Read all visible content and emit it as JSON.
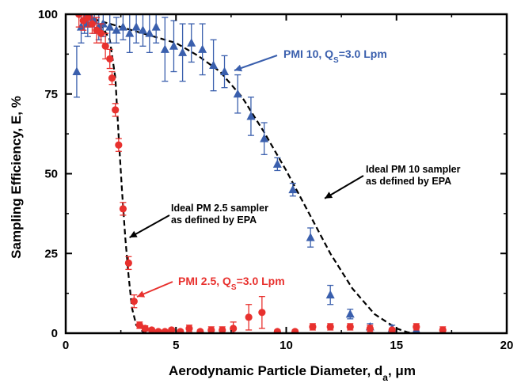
{
  "chart_data": {
    "type": "scatter",
    "xlabel": {
      "main": "Aerodynamic Particle Diameter, d",
      "sub": "a",
      "tail": ", μm"
    },
    "ylabel": "Sampling Efficiency, E, %",
    "xlim": [
      0,
      20
    ],
    "ylim": [
      0,
      100
    ],
    "x_ticks": [
      "0",
      "5",
      "10",
      "15",
      "20"
    ],
    "y_ticks": [
      "0",
      "25",
      "50",
      "75",
      "100"
    ],
    "grid": false,
    "series": [
      {
        "name": "PMI 10, Q_S=3.0 Lpm",
        "label": {
          "pre": "PMI 10, Q",
          "sub": "S",
          "post": "=3.0 Lpm"
        },
        "color": "#3a5fad",
        "marker": "triangle",
        "points": [
          {
            "x": 0.5,
            "y": 82,
            "err": 8
          },
          {
            "x": 0.7,
            "y": 96,
            "err": 5
          },
          {
            "x": 0.85,
            "y": 98,
            "err": 4
          },
          {
            "x": 1.0,
            "y": 97,
            "err": 4
          },
          {
            "x": 1.15,
            "y": 99,
            "err": 3
          },
          {
            "x": 1.3,
            "y": 98,
            "err": 4
          },
          {
            "x": 1.5,
            "y": 96,
            "err": 4
          },
          {
            "x": 1.7,
            "y": 97,
            "err": 4
          },
          {
            "x": 2.0,
            "y": 96,
            "err": 5
          },
          {
            "x": 2.3,
            "y": 95,
            "err": 4
          },
          {
            "x": 2.6,
            "y": 96,
            "err": 4
          },
          {
            "x": 2.9,
            "y": 94,
            "err": 6
          },
          {
            "x": 3.2,
            "y": 96,
            "err": 5
          },
          {
            "x": 3.5,
            "y": 95,
            "err": 5
          },
          {
            "x": 3.8,
            "y": 94,
            "err": 6
          },
          {
            "x": 4.1,
            "y": 96,
            "err": 5
          },
          {
            "x": 4.5,
            "y": 89,
            "err": 10
          },
          {
            "x": 4.9,
            "y": 90,
            "err": 8
          },
          {
            "x": 5.3,
            "y": 88,
            "err": 9
          },
          {
            "x": 5.7,
            "y": 91,
            "err": 6
          },
          {
            "x": 6.2,
            "y": 89,
            "err": 8
          },
          {
            "x": 6.7,
            "y": 84,
            "err": 8
          },
          {
            "x": 7.2,
            "y": 82,
            "err": 5
          },
          {
            "x": 7.8,
            "y": 75,
            "err": 6
          },
          {
            "x": 8.4,
            "y": 68,
            "err": 6
          },
          {
            "x": 9.0,
            "y": 61,
            "err": 5
          },
          {
            "x": 9.6,
            "y": 53,
            "err": 2
          },
          {
            "x": 10.3,
            "y": 45,
            "err": 2
          },
          {
            "x": 11.1,
            "y": 30,
            "err": 3
          },
          {
            "x": 12.0,
            "y": 12,
            "err": 3
          },
          {
            "x": 12.9,
            "y": 6,
            "err": 1.5
          },
          {
            "x": 13.8,
            "y": 2,
            "err": 1
          },
          {
            "x": 14.8,
            "y": 1.5,
            "err": 1
          },
          {
            "x": 15.9,
            "y": 1,
            "err": 0.5
          },
          {
            "x": 17.1,
            "y": 0.5,
            "err": 0.5
          }
        ]
      },
      {
        "name": "PMI 2.5, Q_S=3.0 Lpm",
        "label": {
          "pre": "PMI 2.5, Q",
          "sub": "S",
          "post": "=3.0 Lpm"
        },
        "color": "#e8312e",
        "marker": "circle",
        "points": [
          {
            "x": 0.6,
            "y": 100,
            "err": 4
          },
          {
            "x": 0.8,
            "y": 98,
            "err": 3
          },
          {
            "x": 1.0,
            "y": 99,
            "err": 3
          },
          {
            "x": 1.2,
            "y": 97,
            "err": 3
          },
          {
            "x": 1.4,
            "y": 95,
            "err": 4
          },
          {
            "x": 1.6,
            "y": 94,
            "err": 3
          },
          {
            "x": 1.8,
            "y": 90,
            "err": 4
          },
          {
            "x": 2.0,
            "y": 86,
            "err": 3
          },
          {
            "x": 2.1,
            "y": 80,
            "err": 2
          },
          {
            "x": 2.25,
            "y": 70,
            "err": 2
          },
          {
            "x": 2.4,
            "y": 59,
            "err": 2
          },
          {
            "x": 2.6,
            "y": 39,
            "err": 2
          },
          {
            "x": 2.85,
            "y": 22,
            "err": 2
          },
          {
            "x": 3.1,
            "y": 10,
            "err": 2
          },
          {
            "x": 3.35,
            "y": 2.5,
            "err": 1
          },
          {
            "x": 3.6,
            "y": 1.5,
            "err": 0.8
          },
          {
            "x": 3.9,
            "y": 1,
            "err": 0.5
          },
          {
            "x": 4.2,
            "y": 0.5,
            "err": 0.5
          },
          {
            "x": 4.5,
            "y": 0.5,
            "err": 0.5
          },
          {
            "x": 4.8,
            "y": 1,
            "err": 0.5
          },
          {
            "x": 5.2,
            "y": 0.5,
            "err": 0.5
          },
          {
            "x": 5.6,
            "y": 1.5,
            "err": 1
          },
          {
            "x": 6.1,
            "y": 0.5,
            "err": 0.5
          },
          {
            "x": 6.6,
            "y": 1,
            "err": 1
          },
          {
            "x": 7.1,
            "y": 1,
            "err": 1
          },
          {
            "x": 7.6,
            "y": 1.5,
            "err": 2
          },
          {
            "x": 8.3,
            "y": 5,
            "err": 4
          },
          {
            "x": 8.9,
            "y": 6.5,
            "err": 5
          },
          {
            "x": 9.6,
            "y": 0.5,
            "err": 0.5
          },
          {
            "x": 10.4,
            "y": 0.5,
            "err": 0.5
          },
          {
            "x": 11.2,
            "y": 2,
            "err": 1
          },
          {
            "x": 12.0,
            "y": 2,
            "err": 1
          },
          {
            "x": 12.9,
            "y": 2,
            "err": 1
          },
          {
            "x": 13.8,
            "y": 1.5,
            "err": 1
          },
          {
            "x": 14.8,
            "y": 1,
            "err": 0.5
          },
          {
            "x": 15.9,
            "y": 2,
            "err": 1
          },
          {
            "x": 17.1,
            "y": 1,
            "err": 1
          }
        ]
      }
    ],
    "curves": [
      {
        "name": "ideal-pm10",
        "style": "dashed",
        "points": [
          [
            0.5,
            100
          ],
          [
            1,
            99
          ],
          [
            2,
            97
          ],
          [
            3,
            95
          ],
          [
            4,
            93
          ],
          [
            5,
            91
          ],
          [
            6,
            87
          ],
          [
            7,
            82
          ],
          [
            8,
            74
          ],
          [
            9,
            63
          ],
          [
            10,
            51
          ],
          [
            11,
            38
          ],
          [
            12,
            25
          ],
          [
            13,
            14
          ],
          [
            14,
            6
          ],
          [
            15,
            1.5
          ],
          [
            15.5,
            0.3
          ],
          [
            16,
            0
          ]
        ]
      },
      {
        "name": "ideal-pm25",
        "style": "dashed",
        "points": [
          [
            0.5,
            100
          ],
          [
            1,
            99.5
          ],
          [
            1.5,
            98
          ],
          [
            2,
            92
          ],
          [
            2.25,
            80
          ],
          [
            2.4,
            62
          ],
          [
            2.55,
            45
          ],
          [
            2.7,
            30
          ],
          [
            2.85,
            18
          ],
          [
            3.0,
            8
          ],
          [
            3.2,
            2.5
          ],
          [
            3.5,
            0.5
          ],
          [
            4,
            0
          ]
        ]
      }
    ],
    "annotations": [
      {
        "id": "pm10",
        "lines": [
          "Ideal PM 10 sampler",
          "as defined by EPA"
        ],
        "arrow_to": [
          11.6,
          43
        ]
      },
      {
        "id": "pm25",
        "lines": [
          "Ideal PM 2.5 sampler",
          "as defined by EPA"
        ],
        "arrow_to": [
          2.75,
          30
        ]
      }
    ]
  }
}
